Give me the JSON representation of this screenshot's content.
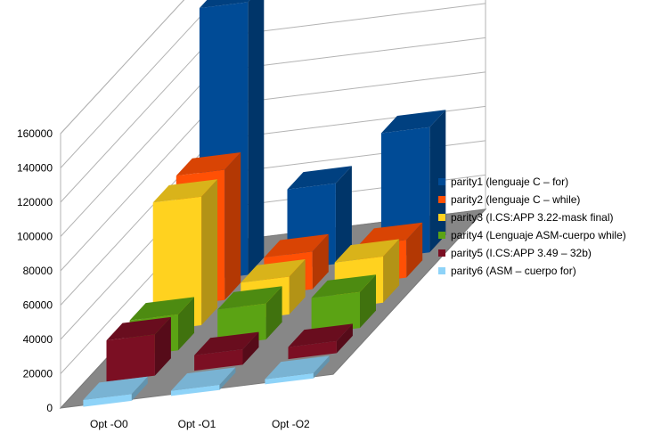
{
  "chart_data": {
    "type": "bar",
    "style": "3d-clustered-depth",
    "categories": [
      "Opt -O0",
      "Opt -O1",
      "Opt -O2"
    ],
    "ylim": [
      0,
      160000
    ],
    "yticks": [
      "0",
      "20000",
      "40000",
      "60000",
      "80000",
      "100000",
      "120000",
      "140000",
      "160000"
    ],
    "grid": true,
    "legend_position": "right",
    "series": [
      {
        "name": "parity6 (ASM – cuerpo for)",
        "color": "#8ed3f8",
        "values": [
          4000,
          3000,
          3000
        ]
      },
      {
        "name": "parity5 (I.CS:APP 3.49 – 32b)",
        "color": "#7b0f23",
        "values": [
          24000,
          9000,
          7000
        ]
      },
      {
        "name": "parity4 (Lenguaje ASM-cuerpo while)",
        "color": "#5ba314",
        "values": [
          21000,
          21000,
          21000
        ]
      },
      {
        "name": "parity3 (I.CS:APP 3.22-mask final)",
        "color": "#ffd21f",
        "values": [
          75000,
          22000,
          27000
        ]
      },
      {
        "name": "parity2 (lenguaje C – while)",
        "color": "#ff5005",
        "values": [
          76000,
          22000,
          22000
        ]
      },
      {
        "name": "parity1 (lenguaje C – for)",
        "color": "#004b96",
        "values": [
          159000,
          47000,
          73000
        ]
      }
    ]
  }
}
